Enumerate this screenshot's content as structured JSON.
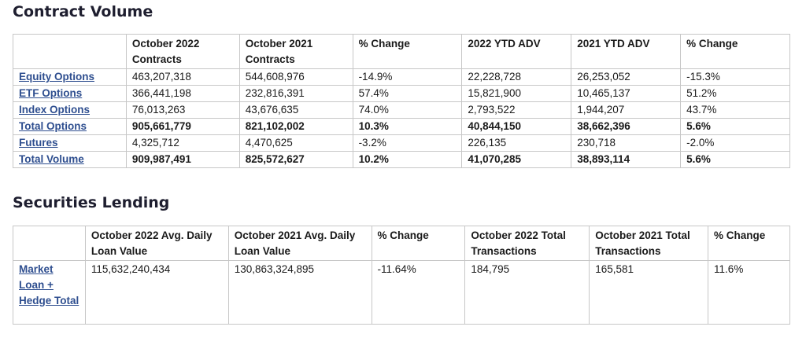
{
  "contract_volume": {
    "title": "Contract Volume",
    "headers": [
      "",
      "October 2022 Contracts",
      "October 2021 Contracts",
      "% Change",
      "2022 YTD ADV",
      "2021 YTD ADV",
      "% Change"
    ],
    "rows": [
      {
        "label": "Equity Options",
        "bold": false,
        "cells": [
          "463,207,318",
          "544,608,976",
          "-14.9%",
          "22,228,728",
          "26,253,052",
          "-15.3%"
        ]
      },
      {
        "label": "ETF Options",
        "bold": false,
        "cells": [
          "366,441,198",
          "232,816,391",
          "57.4%",
          "15,821,900",
          "10,465,137",
          "51.2%"
        ]
      },
      {
        "label": "Index Options",
        "bold": false,
        "cells": [
          "76,013,263",
          "43,676,635",
          "74.0%",
          " 2,793,522",
          " 1,944,207",
          "43.7%"
        ]
      },
      {
        "label": "Total Options",
        "bold": true,
        "cells": [
          "905,661,779",
          "821,102,002",
          "10.3%",
          "40,844,150",
          "38,662,396",
          "5.6%"
        ]
      },
      {
        "label": "Futures",
        "bold": false,
        "cells": [
          "4,325,712",
          "4,470,625",
          "-3.2%",
          "226,135",
          "230,718",
          "-2.0%"
        ]
      },
      {
        "label": "Total Volume",
        "bold": true,
        "cells": [
          "909,987,491",
          "825,572,627",
          "10.2%",
          "41,070,285",
          "38,893,114",
          "5.6%"
        ]
      }
    ]
  },
  "securities_lending": {
    "title": "Securities Lending",
    "headers": [
      "",
      "October 2022 Avg. Daily Loan Value",
      "October 2021 Avg. Daily Loan Value",
      "% Change",
      "October 2022 Total Transactions",
      "October 2021 Total Transactions",
      "% Change"
    ],
    "rows": [
      {
        "label": "Market Loan + Hedge Total",
        "bold": false,
        "cells": [
          "115,632,240,434",
          "130,863,324,895",
          "-11.64%",
          " 184,795",
          "165,581",
          "11.6%"
        ]
      }
    ]
  }
}
